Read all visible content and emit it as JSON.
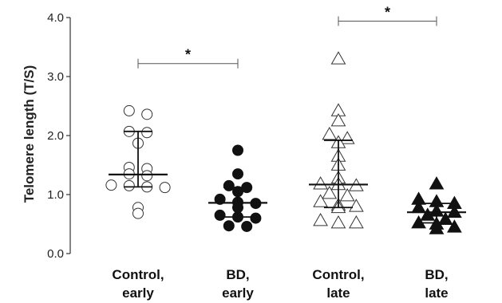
{
  "chart_data": {
    "type": "scatter",
    "title": "",
    "ylabel": "Telomere length (T/S)",
    "xlabel": "",
    "ylim": [
      0.0,
      4.0
    ],
    "yticks": [
      "0.0",
      "1.0",
      "2.0",
      "3.0",
      "4.0"
    ],
    "grid": false,
    "groups": [
      {
        "label_line1": "Control,",
        "label_line2": "early",
        "marker": "circle",
        "filled": false,
        "median": 1.34,
        "upper": 2.07,
        "lower": 1.13,
        "values": [
          2.42,
          2.36,
          2.07,
          2.05,
          1.87,
          1.46,
          1.44,
          1.35,
          1.32,
          1.16,
          1.15,
          1.12,
          1.13,
          0.78,
          0.68
        ]
      },
      {
        "label_line1": "BD,",
        "label_line2": "early",
        "marker": "circle",
        "filled": true,
        "median": 0.86,
        "upper": 1.12,
        "lower": 0.62,
        "values": [
          1.75,
          1.35,
          1.15,
          1.12,
          1.05,
          0.92,
          0.87,
          0.85,
          0.78,
          0.65,
          0.62,
          0.6,
          0.47,
          0.46
        ]
      },
      {
        "label_line1": "Control,",
        "label_line2": "late",
        "marker": "triangle",
        "filled": false,
        "median": 1.17,
        "upper": 1.92,
        "lower": 0.78,
        "values": [
          3.3,
          2.42,
          2.25,
          2.02,
          1.95,
          1.88,
          1.65,
          1.5,
          1.28,
          1.18,
          1.17,
          1.15,
          1.02,
          0.98,
          0.88,
          0.82,
          0.8,
          0.78,
          0.56,
          0.52,
          0.52
        ]
      },
      {
        "label_line1": "BD,",
        "label_line2": "late",
        "marker": "triangle",
        "filled": true,
        "median": 0.7,
        "upper": 0.85,
        "lower": 0.52,
        "values": [
          1.18,
          0.92,
          0.88,
          0.85,
          0.78,
          0.72,
          0.7,
          0.65,
          0.58,
          0.52,
          0.5,
          0.45,
          0.42
        ]
      }
    ],
    "significance": [
      {
        "from": 0,
        "to": 1,
        "y": 3.22,
        "label": "*"
      },
      {
        "from": 2,
        "to": 3,
        "y": 3.94,
        "label": "*"
      }
    ]
  }
}
